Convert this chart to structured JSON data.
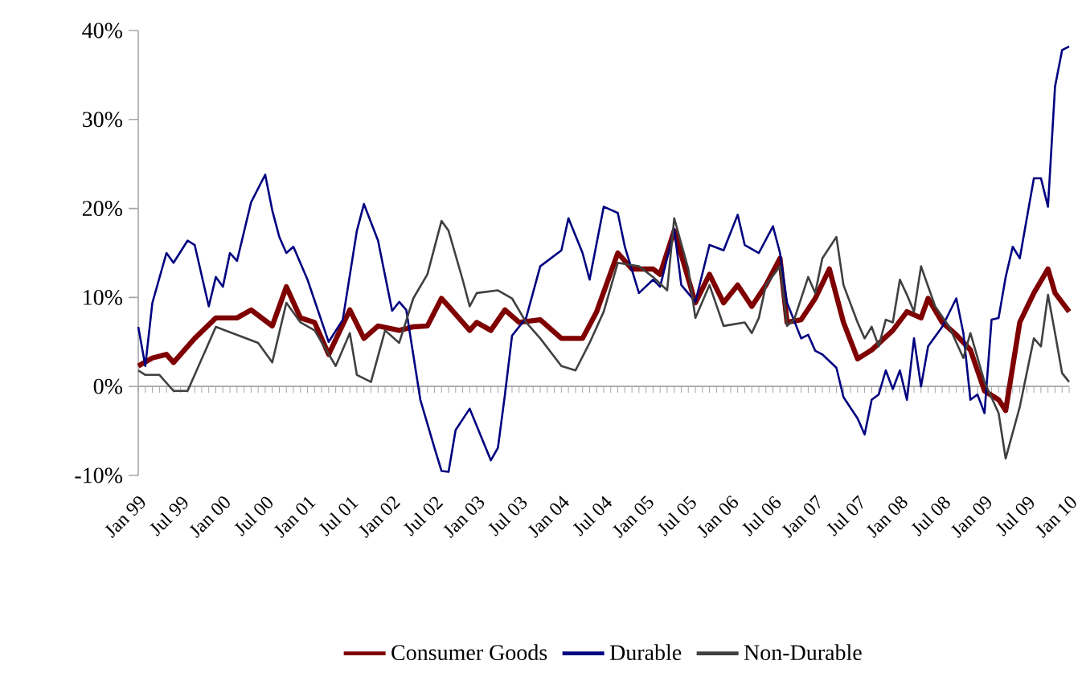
{
  "chart_data": {
    "type": "line",
    "xlim": [
      "1999-01",
      "2010-01"
    ],
    "ylim": [
      -10,
      40
    ],
    "xticks": [
      {
        "value": "1999-01",
        "label": "Jan 99"
      },
      {
        "value": "1999-07",
        "label": "Jul 99"
      },
      {
        "value": "2000-01",
        "label": "Jan 00"
      },
      {
        "value": "2000-07",
        "label": "Jul 00"
      },
      {
        "value": "2001-01",
        "label": "Jan 01"
      },
      {
        "value": "2001-07",
        "label": "Jul 01"
      },
      {
        "value": "2002-01",
        "label": "Jan 02"
      },
      {
        "value": "2002-07",
        "label": "Jul 02"
      },
      {
        "value": "2003-01",
        "label": "Jan 03"
      },
      {
        "value": "2003-07",
        "label": "Jul 03"
      },
      {
        "value": "2004-01",
        "label": "Jan 04"
      },
      {
        "value": "2004-07",
        "label": "Jul 04"
      },
      {
        "value": "2005-01",
        "label": "Jan 05"
      },
      {
        "value": "2005-07",
        "label": "Jul 05"
      },
      {
        "value": "2006-01",
        "label": "Jan 06"
      },
      {
        "value": "2006-07",
        "label": "Jul 06"
      },
      {
        "value": "2007-01",
        "label": "Jan 07"
      },
      {
        "value": "2007-07",
        "label": "Jul 07"
      },
      {
        "value": "2008-01",
        "label": "Jan 08"
      },
      {
        "value": "2008-07",
        "label": "Jul 08"
      },
      {
        "value": "2009-01",
        "label": "Jan 09"
      },
      {
        "value": "2009-07",
        "label": "Jul 09"
      },
      {
        "value": "2010-01",
        "label": "Jan 10"
      }
    ],
    "yticks": [
      {
        "value": -10,
        "label": "-10%"
      },
      {
        "value": 0,
        "label": "0%"
      },
      {
        "value": 10,
        "label": "10%"
      },
      {
        "value": 20,
        "label": "20%"
      },
      {
        "value": 30,
        "label": "30%"
      },
      {
        "value": 40,
        "label": "40%"
      }
    ],
    "legend": "bottom",
    "line_style": "solid",
    "series": [
      {
        "name": "Consumer Goods",
        "color": "#7f0000",
        "x": [
          "1999-01",
          "1999-03",
          "1999-05",
          "1999-06",
          "1999-09",
          "1999-12",
          "2000-03",
          "2000-05",
          "2000-08",
          "2000-10",
          "2000-12",
          "2001-02",
          "2001-04",
          "2001-07",
          "2001-09",
          "2001-11",
          "2002-02",
          "2002-04",
          "2002-06",
          "2002-08",
          "2002-09",
          "2002-12",
          "2003-01",
          "2003-03",
          "2003-05",
          "2003-07",
          "2003-10",
          "2004-01",
          "2004-04",
          "2004-06",
          "2004-09",
          "2004-11",
          "2005-02",
          "2005-03",
          "2005-05",
          "2005-08",
          "2005-10",
          "2005-12",
          "2006-02",
          "2006-04",
          "2006-06",
          "2006-08",
          "2006-09",
          "2006-11",
          "2007-01",
          "2007-03",
          "2007-05",
          "2007-07",
          "2007-09",
          "2007-12",
          "2008-02",
          "2008-04",
          "2008-05",
          "2008-07",
          "2008-09",
          "2008-11",
          "2009-01",
          "2009-03",
          "2009-04",
          "2009-06",
          "2009-08",
          "2009-10",
          "2009-11",
          "2010-01"
        ],
        "values": [
          2.3,
          3.2,
          3.6,
          2.7,
          5.4,
          7.7,
          7.7,
          8.6,
          6.8,
          11.2,
          7.7,
          7.2,
          3.6,
          8.6,
          5.4,
          6.8,
          6.3,
          6.7,
          6.8,
          9.9,
          9.0,
          6.3,
          7.2,
          6.3,
          8.6,
          7.2,
          7.5,
          5.4,
          5.4,
          8.4,
          15.0,
          13.2,
          13.2,
          12.6,
          17.5,
          9.4,
          12.6,
          9.4,
          11.4,
          9.0,
          11.4,
          14.4,
          7.2,
          7.5,
          9.9,
          13.2,
          7.2,
          3.1,
          4.1,
          6.3,
          8.4,
          7.7,
          9.9,
          7.2,
          5.8,
          4.1,
          -0.5,
          -1.5,
          -2.7,
          7.2,
          10.5,
          13.2,
          10.5,
          8.4
        ]
      },
      {
        "name": "Durable",
        "color": "#000080",
        "x": [
          "1999-01",
          "1999-02",
          "1999-03",
          "1999-05",
          "1999-06",
          "1999-08",
          "1999-09",
          "1999-11",
          "1999-12",
          "2000-01",
          "2000-02",
          "2000-03",
          "2000-05",
          "2000-07",
          "2000-08",
          "2000-09",
          "2000-10",
          "2000-11",
          "2001-01",
          "2001-04",
          "2001-06",
          "2001-08",
          "2001-09",
          "2001-11",
          "2002-01",
          "2002-02",
          "2002-03",
          "2002-05",
          "2002-07",
          "2002-08",
          "2002-09",
          "2002-10",
          "2002-12",
          "2003-03",
          "2003-04",
          "2003-05",
          "2003-06",
          "2003-08",
          "2003-10",
          "2004-01",
          "2004-02",
          "2004-04",
          "2004-05",
          "2004-07",
          "2004-09",
          "2004-10",
          "2004-12",
          "2005-02",
          "2005-03",
          "2005-05",
          "2005-06",
          "2005-08",
          "2005-10",
          "2005-12",
          "2006-02",
          "2006-03",
          "2006-05",
          "2006-07",
          "2006-08",
          "2006-09",
          "2006-11",
          "2006-12",
          "2007-01",
          "2007-02",
          "2007-04",
          "2007-05",
          "2007-07",
          "2007-08",
          "2007-09",
          "2007-10",
          "2007-11",
          "2007-12",
          "2008-01",
          "2008-02",
          "2008-03",
          "2008-04",
          "2008-05",
          "2008-07",
          "2008-09",
          "2008-10",
          "2008-11",
          "2008-12",
          "2009-01",
          "2009-02",
          "2009-03",
          "2009-04",
          "2009-05",
          "2009-06",
          "2009-07",
          "2009-08",
          "2009-09",
          "2009-10",
          "2009-11",
          "2009-12",
          "2010-01"
        ],
        "values": [
          6.7,
          2.3,
          9.4,
          15.0,
          13.9,
          16.4,
          15.9,
          9.0,
          12.3,
          11.2,
          15.0,
          14.1,
          20.7,
          23.8,
          19.8,
          16.8,
          15.0,
          15.7,
          12.0,
          5.0,
          7.5,
          17.5,
          20.5,
          16.4,
          8.5,
          9.5,
          8.6,
          -1.5,
          -6.9,
          -9.5,
          -9.6,
          -4.9,
          -2.5,
          -8.3,
          -6.9,
          -0.9,
          5.7,
          7.7,
          13.5,
          15.3,
          18.9,
          15.0,
          12.0,
          20.2,
          19.5,
          15.7,
          10.5,
          12.0,
          11.2,
          17.7,
          11.4,
          9.5,
          15.9,
          15.3,
          19.3,
          15.9,
          15.0,
          18.0,
          15.0,
          9.4,
          5.4,
          5.8,
          4.0,
          3.6,
          2.1,
          -1.2,
          -3.6,
          -5.4,
          -1.5,
          -0.9,
          1.8,
          -0.3,
          1.8,
          -1.5,
          5.4,
          0.0,
          4.5,
          6.7,
          9.9,
          6.0,
          -1.5,
          -0.9,
          -3.0,
          7.5,
          7.7,
          12.3,
          15.7,
          14.4,
          18.9,
          23.4,
          23.4,
          20.2,
          33.7,
          37.8,
          38.2
        ]
      },
      {
        "name": "Non-Durable",
        "color": "#404040",
        "x": [
          "1999-01",
          "1999-02",
          "1999-04",
          "1999-06",
          "1999-08",
          "1999-09",
          "1999-12",
          "2000-03",
          "2000-06",
          "2000-08",
          "2000-10",
          "2000-12",
          "2001-02",
          "2001-05",
          "2001-07",
          "2001-08",
          "2001-10",
          "2001-12",
          "2002-02",
          "2002-04",
          "2002-06",
          "2002-08",
          "2002-09",
          "2002-11",
          "2002-12",
          "2003-01",
          "2003-04",
          "2003-06",
          "2003-08",
          "2003-10",
          "2004-01",
          "2004-03",
          "2004-05",
          "2004-07",
          "2004-09",
          "2004-12",
          "2005-02",
          "2005-04",
          "2005-05",
          "2005-07",
          "2005-08",
          "2005-10",
          "2005-12",
          "2006-03",
          "2006-04",
          "2006-05",
          "2006-06",
          "2006-08",
          "2006-09",
          "2006-10",
          "2006-12",
          "2007-01",
          "2007-02",
          "2007-04",
          "2007-05",
          "2007-07",
          "2007-08",
          "2007-09",
          "2007-10",
          "2007-11",
          "2007-12",
          "2008-01",
          "2008-02",
          "2008-03",
          "2008-04",
          "2008-06",
          "2008-08",
          "2008-10",
          "2008-11",
          "2009-01",
          "2009-03",
          "2009-04",
          "2009-06",
          "2009-08",
          "2009-09",
          "2009-10",
          "2009-11",
          "2009-12",
          "2010-01"
        ],
        "values": [
          1.8,
          1.3,
          1.3,
          -0.5,
          -0.5,
          1.3,
          6.7,
          5.8,
          4.9,
          2.7,
          9.4,
          7.2,
          6.3,
          2.3,
          6.0,
          1.3,
          0.5,
          6.3,
          4.9,
          9.9,
          12.6,
          18.6,
          17.5,
          12.0,
          9.0,
          10.5,
          10.8,
          9.9,
          7.2,
          5.4,
          2.3,
          1.8,
          4.9,
          8.4,
          13.9,
          13.5,
          12.3,
          10.8,
          18.9,
          13.2,
          7.7,
          11.4,
          6.8,
          7.2,
          6.0,
          7.7,
          11.4,
          13.5,
          6.8,
          7.5,
          12.3,
          10.5,
          14.4,
          16.8,
          11.4,
          7.2,
          5.4,
          6.7,
          4.5,
          7.5,
          7.2,
          12.0,
          10.3,
          8.4,
          13.5,
          9.0,
          6.7,
          3.2,
          6.0,
          0.5,
          -3.0,
          -8.1,
          -2.3,
          5.4,
          4.5,
          10.3,
          6.0,
          1.5,
          0.5
        ]
      }
    ]
  }
}
